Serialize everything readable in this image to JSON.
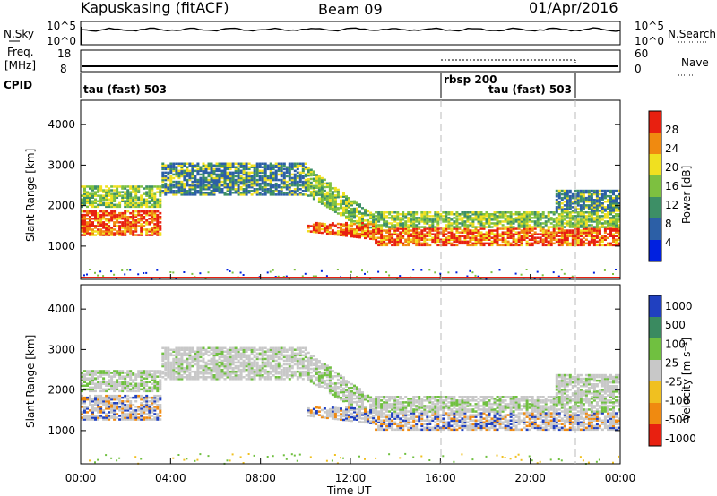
{
  "header": {
    "station": "Kapuskasing (fitACF)",
    "beam": "Beam 09",
    "date": "01/Apr/2016"
  },
  "noise_panel": {
    "left_label": "N.Sky",
    "left_ticks": [
      "10^5",
      "10^0"
    ],
    "right_ticks": [
      "10^5",
      "10^0"
    ],
    "right_label": "N.Search"
  },
  "freq_panel": {
    "left_label_1": "Freq.",
    "left_label_2": "[MHz]",
    "left_ticks": [
      "18",
      "8"
    ],
    "right_ticks": [
      "60",
      "0"
    ],
    "right_label": "Nave"
  },
  "cpid_panel": {
    "label": "CPID",
    "segments": [
      {
        "text": "tau (fast) 503",
        "start_hour": 0
      },
      {
        "text": "rbsp 200",
        "start_hour": 16
      },
      {
        "text": "tau (fast) 503",
        "start_hour": 22
      }
    ]
  },
  "chart_data": [
    {
      "type": "heatmap",
      "name": "power",
      "ylabel": "Slant Range [km]",
      "colorbar_label": "Power [dB]",
      "colorbar_ticks": [
        "4",
        "8",
        "12",
        "16",
        "20",
        "24",
        "28"
      ],
      "colorbar_range": [
        0,
        30
      ],
      "colors": [
        "#0020e0",
        "#2c5fa6",
        "#3d8f66",
        "#7dc040",
        "#f0e020",
        "#f08a10",
        "#e82010"
      ],
      "ylim": [
        180,
        4600
      ],
      "yticks": [
        1000,
        2000,
        3000,
        4000
      ],
      "xlim": [
        0,
        24
      ]
    },
    {
      "type": "heatmap",
      "name": "velocity",
      "ylabel": "Slant Range [km]",
      "colorbar_label": "Velocity [m s⁻¹]",
      "colorbar_ticks": [
        "1000",
        "500",
        "100",
        "25",
        "-25",
        "-100",
        "-500",
        "-1000"
      ],
      "colors": [
        "#2040c0",
        "#3a8a60",
        "#70c040",
        "#c8c8c8",
        "#f0c020",
        "#f08a10",
        "#e82010"
      ],
      "ylim": [
        180,
        4600
      ],
      "yticks": [
        1000,
        2000,
        3000,
        4000
      ],
      "xlim": [
        0,
        24
      ]
    }
  ],
  "time_axis": {
    "ticks": [
      "00:00",
      "04:00",
      "08:00",
      "12:00",
      "16:00",
      "20:00",
      "00:00"
    ],
    "label": "Time UT"
  }
}
